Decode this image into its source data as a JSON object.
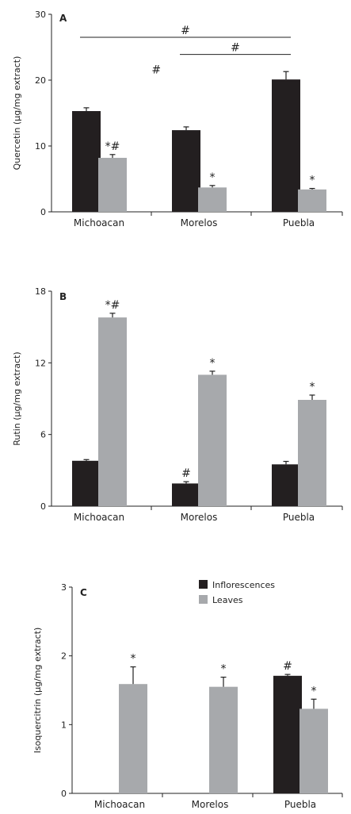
{
  "legend": {
    "items": [
      {
        "label": "Inflorescences",
        "color": "#231f20"
      },
      {
        "label": "Leaves",
        "color": "#a7a9ac"
      }
    ],
    "position": "top-right of panel C"
  },
  "chart_data": [
    {
      "type": "bar",
      "panel_label": "A",
      "ylabel": "Quercetin (μg/mg extract)",
      "categories": [
        "Michoacan",
        "Morelos",
        "Puebla"
      ],
      "ylim": [
        0,
        30
      ],
      "yticks": [
        0,
        10,
        20,
        30
      ],
      "series": [
        {
          "name": "Inflorescences",
          "values": [
            15.3,
            12.4,
            20.1
          ],
          "errors": [
            0.5,
            0.5,
            1.2
          ],
          "markers": [
            "",
            "",
            ""
          ]
        },
        {
          "name": "Leaves",
          "values": [
            8.2,
            3.7,
            3.4
          ],
          "errors": [
            0.5,
            0.3,
            0.15
          ],
          "markers": [
            "*#",
            "*",
            "*"
          ]
        }
      ],
      "annotations": [
        {
          "text": "#",
          "x": 1.05,
          "y": 21
        },
        {
          "text": "#",
          "bracket": [
            0,
            2
          ],
          "y": 26.5
        },
        {
          "text": "#",
          "bracket": [
            1,
            2
          ],
          "y": 23.9
        }
      ]
    },
    {
      "type": "bar",
      "panel_label": "B",
      "ylabel": "Rutin (μg/mg extract)",
      "categories": [
        "Michoacan",
        "Morelos",
        "Puebla"
      ],
      "ylim": [
        0,
        18
      ],
      "yticks": [
        0,
        6,
        12,
        18
      ],
      "series": [
        {
          "name": "Inflorescences",
          "values": [
            3.8,
            1.9,
            3.5
          ],
          "errors": [
            0.1,
            0.15,
            0.25
          ],
          "markers": [
            "",
            "#",
            ""
          ]
        },
        {
          "name": "Leaves",
          "values": [
            15.8,
            11.0,
            8.9
          ],
          "errors": [
            0.35,
            0.3,
            0.4
          ],
          "markers": [
            "*#",
            "*",
            "*"
          ]
        }
      ],
      "annotations": []
    },
    {
      "type": "bar",
      "panel_label": "C",
      "ylabel": "Isoquercitrin (μg/mg extract)",
      "categories": [
        "Michoacan",
        "Morelos",
        "Puebla"
      ],
      "ylim": [
        0,
        3
      ],
      "yticks": [
        0,
        1,
        2,
        3
      ],
      "series": [
        {
          "name": "Inflorescences",
          "values": [
            0,
            0,
            1.71
          ],
          "errors": [
            0,
            0,
            0.02
          ],
          "markers": [
            "",
            "",
            "#"
          ]
        },
        {
          "name": "Leaves",
          "values": [
            1.59,
            1.55,
            1.23
          ],
          "errors": [
            0.25,
            0.14,
            0.14
          ],
          "markers": [
            "*",
            "*",
            "*"
          ]
        }
      ],
      "annotations": []
    }
  ]
}
